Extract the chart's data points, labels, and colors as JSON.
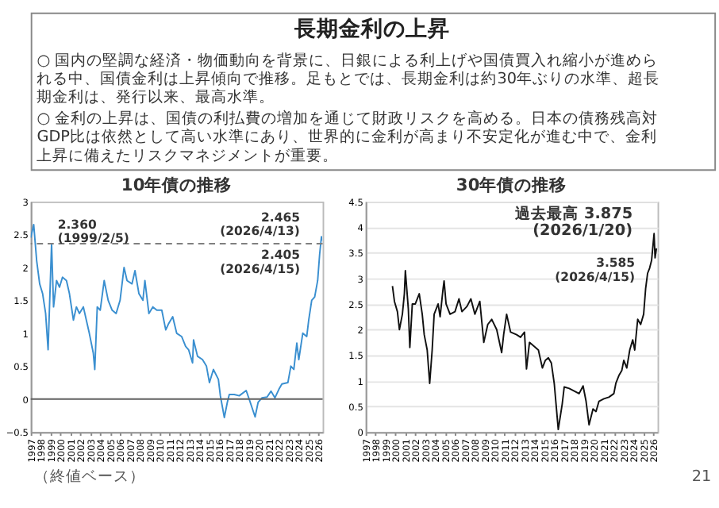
{
  "chart_data": [
    {
      "type": "other",
      "title": "長期金利の上昇",
      "annotations": [
        "○ 国内の堅調な経済・物価動向を背景に、日銀による利上げや国債買入れ縮小が進められる中、国債金利は上昇傾向で推移。足もとでは、長期金利は約30年ぶりの水準、超長期金利は、発行以来、最高水準。",
        "○ 金利の上昇は、国債の利払費の増加を通じて財政リスクを高める。日本の債務残高対GDP比は依然として高い水準にあり、世界的に金利が高まり不安定化が進む中で、金利上昇に備えたリスクマネジメントが重要。"
      ]
    },
    {
      "type": "line",
      "title": "10年債の推移",
      "series": [
        {
          "color": "#3a8fd0",
          "x": [
            1997.0,
            1997.3,
            1997.6,
            1997.9,
            1998.2,
            1998.5,
            1998.75,
            1999.0,
            1999.1,
            1999.3,
            1999.6,
            1999.9,
            2000.2,
            2000.6,
            2000.9,
            2001.3,
            2001.6,
            2001.9,
            2002.3,
            2002.6,
            2002.9,
            2003.3,
            2003.45,
            2003.7,
            2004.0,
            2004.4,
            2004.8,
            2005.2,
            2005.6,
            2006.0,
            2006.4,
            2006.7,
            2007.2,
            2007.5,
            2007.9,
            2008.3,
            2008.5,
            2008.9,
            2009.3,
            2009.7,
            2010.2,
            2010.6,
            2010.9,
            2011.3,
            2011.7,
            2012.2,
            2012.6,
            2012.9,
            2013.3,
            2013.4,
            2013.8,
            2014.3,
            2014.7,
            2015.0,
            2015.4,
            2015.9,
            2016.1,
            2016.5,
            2016.8,
            2017.0,
            2017.5,
            2018.0,
            2018.7,
            2019.0,
            2019.6,
            2019.9,
            2020.3,
            2020.8,
            2021.2,
            2021.6,
            2022.0,
            2022.3,
            2022.9,
            2023.2,
            2023.5,
            2023.8,
            2024.0,
            2024.4,
            2024.8,
            2025.0,
            2025.3,
            2025.6,
            2025.9,
            2026.1,
            2026.28,
            2026.29
          ],
          "values": [
            2.45,
            2.65,
            2.1,
            1.75,
            1.6,
            1.3,
            0.75,
            1.9,
            2.36,
            1.4,
            1.8,
            1.7,
            1.85,
            1.8,
            1.6,
            1.2,
            1.4,
            1.3,
            1.4,
            1.2,
            1.0,
            0.7,
            0.45,
            1.4,
            1.35,
            1.8,
            1.5,
            1.35,
            1.3,
            1.5,
            2.0,
            1.8,
            1.75,
            1.95,
            1.6,
            1.5,
            1.8,
            1.3,
            1.4,
            1.35,
            1.35,
            1.05,
            1.15,
            1.25,
            1.0,
            0.95,
            0.8,
            0.75,
            0.55,
            0.9,
            0.65,
            0.6,
            0.5,
            0.25,
            0.45,
            0.3,
            0.05,
            -0.28,
            -0.05,
            0.07,
            0.07,
            0.05,
            0.13,
            0.0,
            -0.27,
            -0.05,
            0.02,
            0.03,
            0.12,
            0.02,
            0.15,
            0.23,
            0.25,
            0.5,
            0.45,
            0.85,
            0.6,
            1.0,
            0.95,
            1.2,
            1.5,
            1.55,
            1.8,
            2.2,
            2.465,
            2.405
          ]
        }
      ],
      "xlim": [
        1997,
        2026.4
      ],
      "xticks": [
        1997,
        1998,
        1999,
        2000,
        2001,
        2002,
        2003,
        2004,
        2005,
        2006,
        2007,
        2008,
        2009,
        2010,
        2011,
        2012,
        2013,
        2014,
        2015,
        2016,
        2017,
        2018,
        2019,
        2020,
        2021,
        2022,
        2023,
        2024,
        2025,
        2026
      ],
      "ylim": [
        -0.5,
        3
      ],
      "yticks": [
        -0.5,
        0,
        0.5,
        1,
        1.5,
        2,
        2.5,
        3
      ],
      "ref_lines": [
        {
          "axis": "y",
          "value": 2.36,
          "color": "#808080",
          "line_style": "dashed"
        },
        {
          "axis": "y",
          "value": 0,
          "color": "#606060",
          "line_style": "solid"
        }
      ],
      "annotations": [
        {
          "text": "2.360\n(1999/2/5)",
          "x": 1999.1,
          "y": 2.36
        },
        {
          "text": "2.465\n(2026/4/13)",
          "x": 2026.28,
          "y": 2.465
        },
        {
          "text": "2.405\n(2026/4/15)",
          "x": 2026.29,
          "y": 2.405
        }
      ]
    },
    {
      "type": "line",
      "title": "30年債の推移",
      "series": [
        {
          "color": "#111111",
          "x": [
            1999.7,
            1999.9,
            2000.2,
            2000.4,
            2000.7,
            2000.9,
            2001.0,
            2001.3,
            2001.45,
            2001.7,
            2002.0,
            2002.4,
            2002.7,
            2002.9,
            2003.2,
            2003.45,
            2003.7,
            2003.9,
            2004.3,
            2004.5,
            2004.8,
            2004.9,
            2005.1,
            2005.5,
            2006.0,
            2006.4,
            2006.7,
            2007.2,
            2007.6,
            2008.0,
            2008.5,
            2008.9,
            2009.3,
            2009.7,
            2010.2,
            2010.7,
            2010.9,
            2011.2,
            2011.6,
            2012.2,
            2012.6,
            2013.0,
            2013.2,
            2013.5,
            2014.1,
            2014.4,
            2014.8,
            2015.1,
            2015.4,
            2015.7,
            2016.0,
            2016.4,
            2016.8,
            2017.0,
            2017.5,
            2018.0,
            2018.5,
            2018.9,
            2019.2,
            2019.5,
            2019.9,
            2020.2,
            2020.5,
            2021.0,
            2021.5,
            2022.0,
            2022.2,
            2022.5,
            2022.8,
            2023.0,
            2023.3,
            2023.6,
            2023.9,
            2024.1,
            2024.4,
            2024.7,
            2025.0,
            2025.2,
            2025.4,
            2025.6,
            2025.8,
            2026.05,
            2026.15,
            2026.29
          ],
          "values": [
            2.85,
            2.55,
            2.35,
            2.0,
            2.3,
            2.7,
            3.15,
            2.4,
            1.65,
            2.5,
            2.5,
            2.7,
            2.3,
            1.9,
            1.6,
            0.95,
            1.6,
            2.3,
            2.5,
            2.25,
            2.8,
            2.95,
            2.5,
            2.3,
            2.35,
            2.6,
            2.35,
            2.45,
            2.6,
            2.3,
            2.55,
            1.75,
            2.1,
            2.2,
            2.0,
            1.55,
            1.9,
            2.3,
            1.95,
            1.9,
            1.85,
            1.95,
            1.23,
            1.75,
            1.65,
            1.6,
            1.25,
            1.4,
            1.45,
            1.35,
            0.94,
            0.05,
            0.55,
            0.88,
            0.85,
            0.8,
            0.75,
            0.9,
            0.6,
            0.14,
            0.45,
            0.4,
            0.6,
            0.65,
            0.68,
            0.75,
            0.95,
            1.1,
            1.2,
            1.4,
            1.25,
            1.6,
            1.8,
            1.6,
            2.2,
            2.1,
            2.3,
            2.8,
            3.1,
            3.2,
            3.35,
            3.875,
            3.4,
            3.585
          ]
        }
      ],
      "xlim": [
        1997,
        2026.4
      ],
      "xticks": [
        1997,
        1998,
        1999,
        2000,
        2001,
        2002,
        2003,
        2004,
        2005,
        2006,
        2007,
        2008,
        2009,
        2010,
        2011,
        2012,
        2013,
        2014,
        2015,
        2016,
        2017,
        2018,
        2019,
        2020,
        2021,
        2022,
        2023,
        2024,
        2025,
        2026
      ],
      "ylim": [
        0,
        4.5
      ],
      "yticks": [
        0,
        0.5,
        1,
        1.5,
        2,
        2.5,
        3,
        3.5,
        4,
        4.5
      ],
      "grid": "y",
      "annotations": [
        {
          "text": "過去最高 3.875\n(2026/1/20)",
          "x": 2026.05,
          "y": 3.875
        },
        {
          "text": "3.585\n(2026/4/15)",
          "x": 2026.29,
          "y": 3.585
        }
      ]
    },
    {
      "type": "other",
      "annotations": [
        "（終値ベース）",
        "21"
      ]
    }
  ]
}
